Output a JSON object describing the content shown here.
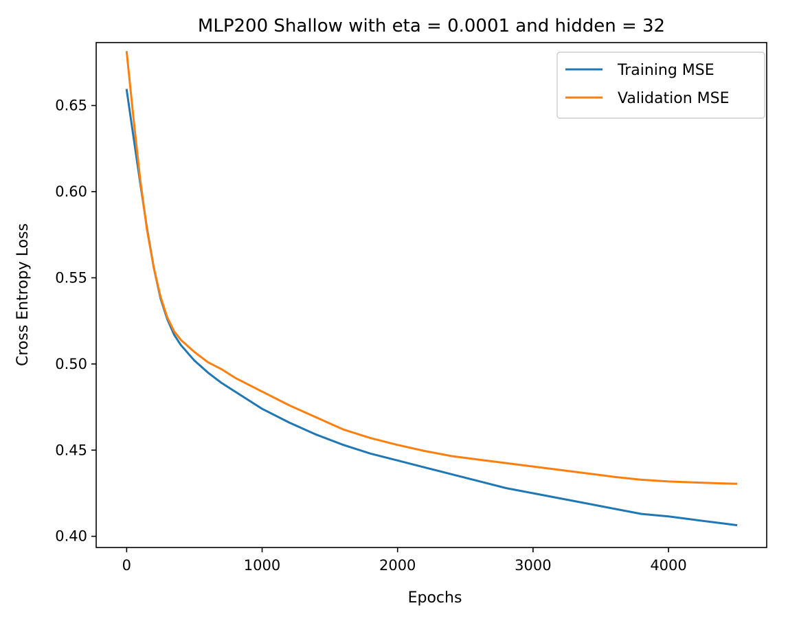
{
  "chart_data": {
    "type": "line",
    "title": "MLP200 Shallow with eta = 0.0001 and hidden = 32",
    "xlabel": "Epochs",
    "ylabel": "Cross Entropy Loss",
    "xlim": [
      -225,
      4725
    ],
    "ylim": [
      0.3935,
      0.6865
    ],
    "xticks": [
      0,
      1000,
      2000,
      3000,
      4000
    ],
    "xtick_labels": [
      "0",
      "1000",
      "2000",
      "3000",
      "4000"
    ],
    "yticks": [
      0.4,
      0.45,
      0.5,
      0.55,
      0.6,
      0.65
    ],
    "ytick_labels": [
      "0.40",
      "0.45",
      "0.50",
      "0.55",
      "0.60",
      "0.65"
    ],
    "grid": false,
    "legend_position": "top-right",
    "series": [
      {
        "name": "Training MSE",
        "color": "#1f77b4",
        "x": [
          0,
          50,
          100,
          150,
          200,
          250,
          300,
          350,
          400,
          500,
          600,
          700,
          800,
          1000,
          1200,
          1400,
          1600,
          1800,
          2000,
          2200,
          2400,
          2600,
          2800,
          3000,
          3200,
          3400,
          3600,
          3800,
          4000,
          4200,
          4400,
          4500
        ],
        "y": [
          0.659,
          0.632,
          0.605,
          0.579,
          0.556,
          0.538,
          0.526,
          0.517,
          0.511,
          0.502,
          0.495,
          0.489,
          0.484,
          0.474,
          0.466,
          0.459,
          0.453,
          0.448,
          0.444,
          0.44,
          0.436,
          0.432,
          0.428,
          0.425,
          0.422,
          0.419,
          0.416,
          0.413,
          0.4115,
          0.4095,
          0.4075,
          0.4065
        ]
      },
      {
        "name": "Validation MSE",
        "color": "#ff7f0e",
        "x": [
          0,
          50,
          100,
          150,
          200,
          250,
          300,
          350,
          400,
          500,
          600,
          700,
          800,
          1000,
          1200,
          1400,
          1600,
          1800,
          2000,
          2200,
          2400,
          2600,
          2800,
          3000,
          3200,
          3400,
          3600,
          3800,
          4000,
          4200,
          4400,
          4500
        ],
        "y": [
          0.681,
          0.643,
          0.607,
          0.578,
          0.556,
          0.539,
          0.527,
          0.519,
          0.514,
          0.507,
          0.501,
          0.497,
          0.492,
          0.484,
          0.476,
          0.469,
          0.462,
          0.457,
          0.453,
          0.4495,
          0.4465,
          0.4445,
          0.4425,
          0.4405,
          0.4385,
          0.4365,
          0.4345,
          0.4328,
          0.4318,
          0.4312,
          0.4307,
          0.4305
        ]
      }
    ]
  }
}
